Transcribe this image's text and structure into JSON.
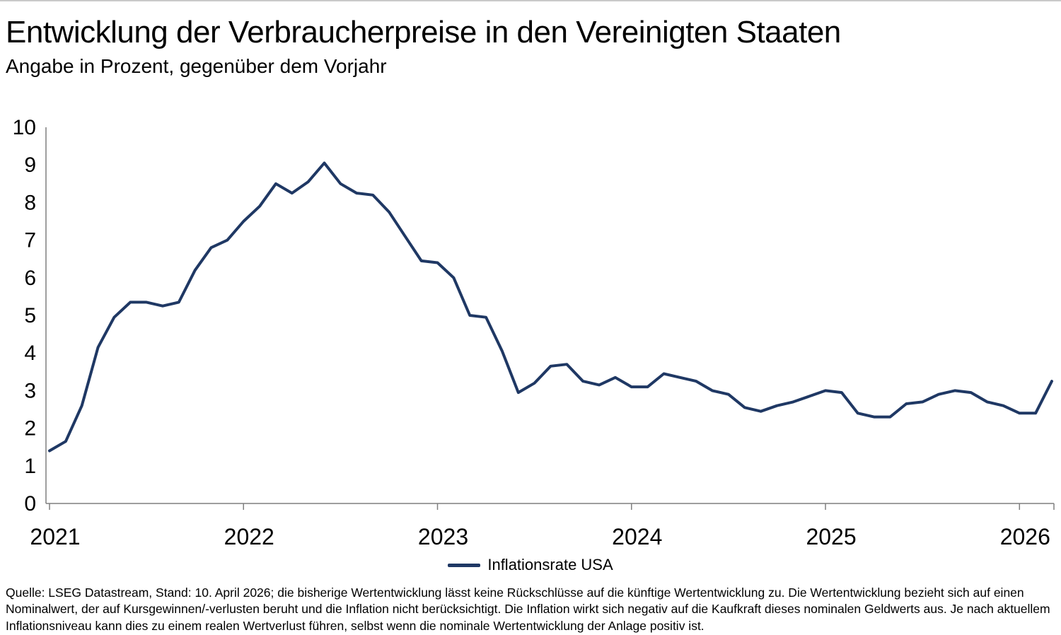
{
  "page": {
    "title": "Entwicklung der Verbraucherpreise in den Vereinigten Staaten",
    "subtitle": "Angabe in Prozent, gegenüber dem Vorjahr",
    "source_note": "Quelle: LSEG Datastream, Stand: 10. April 2026; die bisherige Wertentwicklung lässt keine Rückschlüsse auf die künftige Wertentwicklung zu. Die Wertentwicklung bezieht sich auf einen Nominalwert, der auf Kursgewinnen/-verlusten beruht und die Inflation nicht berücksichtigt. Die Inflation wirkt sich negativ auf die Kaufkraft dieses nominalen Geldwerts aus. Je nach aktuellem Inflationsniveau kann dies zu einem realen Wertverlust führen, selbst wenn die nominale Wertentwicklung der Anlage positiv ist."
  },
  "chart_data": {
    "type": "line",
    "title": "Entwicklung der Verbraucherpreise in den Vereinigten Staaten",
    "subtitle": "Angabe in Prozent, gegenüber dem Vorjahr",
    "legend": [
      "Inflationsrate USA"
    ],
    "legend_position": "bottom-center",
    "line_color": "#1f3864",
    "axis_color": "#7f7f7f",
    "grid": false,
    "ylim": [
      0,
      10
    ],
    "yticks": [
      0,
      1,
      2,
      3,
      4,
      5,
      6,
      7,
      8,
      9,
      10
    ],
    "x_tick_labels": [
      "2021",
      "2022",
      "2023",
      "2024",
      "2025",
      "2026"
    ],
    "x_tick_month_index": [
      0,
      12,
      24,
      36,
      48,
      60
    ],
    "xlabel": "",
    "ylabel": "",
    "x": [
      "2021-01",
      "2021-02",
      "2021-03",
      "2021-04",
      "2021-05",
      "2021-06",
      "2021-07",
      "2021-08",
      "2021-09",
      "2021-10",
      "2021-11",
      "2021-12",
      "2022-01",
      "2022-02",
      "2022-03",
      "2022-04",
      "2022-05",
      "2022-06",
      "2022-07",
      "2022-08",
      "2022-09",
      "2022-10",
      "2022-11",
      "2022-12",
      "2023-01",
      "2023-02",
      "2023-03",
      "2023-04",
      "2023-05",
      "2023-06",
      "2023-07",
      "2023-08",
      "2023-09",
      "2023-10",
      "2023-11",
      "2023-12",
      "2024-01",
      "2024-02",
      "2024-03",
      "2024-04",
      "2024-05",
      "2024-06",
      "2024-07",
      "2024-08",
      "2024-09",
      "2024-10",
      "2024-11",
      "2024-12",
      "2025-01",
      "2025-02",
      "2025-03",
      "2025-04",
      "2025-05",
      "2025-06",
      "2025-07",
      "2025-08",
      "2025-09",
      "2025-10",
      "2025-11",
      "2025-12",
      "2026-01",
      "2026-02",
      "2026-03"
    ],
    "series": [
      {
        "name": "Inflationsrate USA",
        "unit": "percent",
        "values": [
          1.4,
          1.65,
          2.6,
          4.15,
          4.95,
          5.35,
          5.35,
          5.25,
          5.35,
          6.2,
          6.8,
          7.0,
          7.5,
          7.9,
          8.5,
          8.25,
          8.55,
          9.05,
          8.5,
          8.25,
          8.2,
          7.75,
          7.1,
          6.45,
          6.4,
          6.0,
          5.0,
          4.95,
          4.05,
          2.95,
          3.2,
          3.65,
          3.7,
          3.25,
          3.15,
          3.35,
          3.1,
          3.1,
          3.45,
          3.35,
          3.25,
          3.0,
          2.9,
          2.55,
          2.45,
          2.6,
          2.7,
          2.85,
          3.0,
          2.95,
          2.4,
          2.3,
          2.3,
          2.65,
          2.7,
          2.9,
          3.0,
          2.95,
          2.7,
          2.6,
          2.4,
          2.4,
          3.25
        ]
      }
    ]
  }
}
